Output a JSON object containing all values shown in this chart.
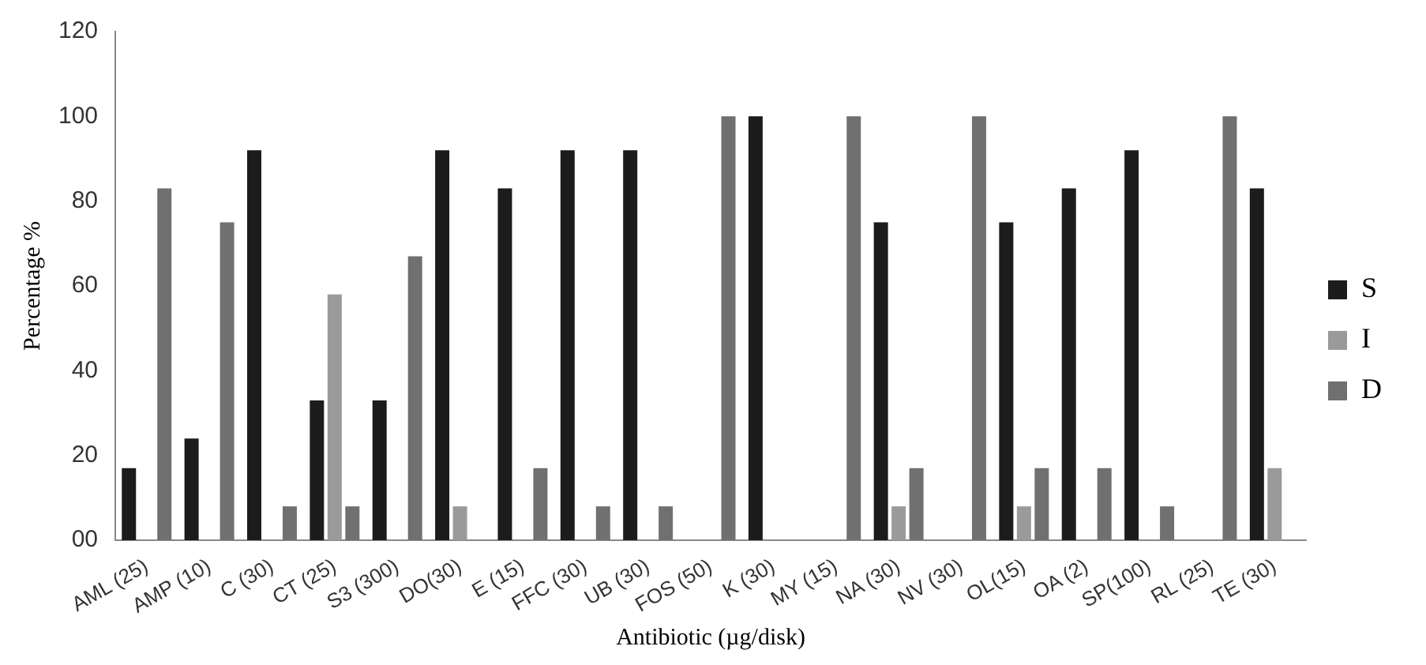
{
  "chart_data": {
    "type": "bar",
    "xlabel": "Antibiotic (µg/disk)",
    "ylabel": "Percentage %",
    "categories": [
      "AML (25)",
      "AMP (10)",
      "C (30)",
      "CT (25)",
      "S3 (300)",
      "DO(30)",
      "E (15)",
      "FFC (30)",
      "UB (30)",
      "FOS (50)",
      "K (30)",
      "MY (15)",
      "NA (30)",
      "NV (30)",
      "OL(15)",
      "OA (2)",
      "SP(100)",
      "RL (25)",
      "TE (30)"
    ],
    "series": [
      {
        "name": "S",
        "color": "#1c1c1c",
        "values": [
          17,
          24,
          92,
          33,
          33,
          92,
          83,
          92,
          92,
          0,
          100,
          0,
          75,
          0,
          75,
          83,
          92,
          0,
          83
        ]
      },
      {
        "name": "I",
        "color": "#9a9a9a",
        "values": [
          0,
          0,
          0,
          58,
          0,
          8,
          0,
          0,
          0,
          0,
          0,
          0,
          8,
          0,
          8,
          0,
          0,
          0,
          17
        ]
      },
      {
        "name": "D",
        "color": "#707070",
        "values": [
          83,
          75,
          8,
          8,
          67,
          0,
          17,
          8,
          8,
          100,
          0,
          100,
          17,
          100,
          17,
          17,
          8,
          100,
          0
        ]
      }
    ],
    "ylim": [
      0,
      120
    ],
    "yticks": [
      {
        "value": 0,
        "label": "00"
      },
      20,
      40,
      60,
      80,
      100,
      120
    ],
    "grid": false,
    "legend": "right"
  }
}
